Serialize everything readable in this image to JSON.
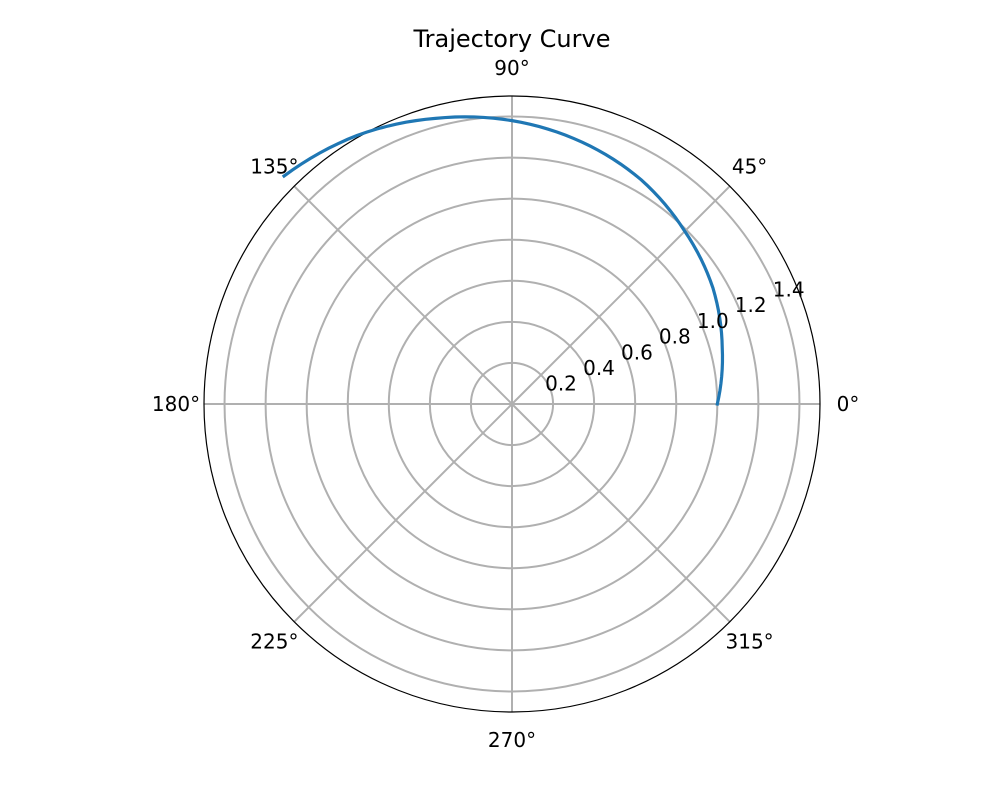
{
  "chart_data": {
    "type": "line",
    "projection": "polar",
    "title": "Trajectory Curve",
    "theta_unit": "degrees",
    "theta_ticks": [
      0,
      45,
      90,
      135,
      180,
      225,
      270,
      315
    ],
    "theta_tick_labels": [
      "0°",
      "45°",
      "90°",
      "135°",
      "180°",
      "225°",
      "270°",
      "315°"
    ],
    "r_ticks": [
      0.2,
      0.4,
      0.6,
      0.8,
      1.0,
      1.2,
      1.4
    ],
    "r_tick_labels": [
      "0.2",
      "0.4",
      "0.6",
      "0.8",
      "1.0",
      "1.2",
      "1.4"
    ],
    "r_lim": [
      0,
      1.5
    ],
    "r_label_angle_deg": 22.5,
    "grid": true,
    "colors": {
      "series": "#1f77b4",
      "grid": "#b0b0b0",
      "frame": "#000000"
    },
    "series": [
      {
        "theta": [
          0,
          15,
          30,
          45,
          60,
          75,
          90,
          105,
          120,
          135
        ],
        "r": [
          1.0,
          1.06,
          1.13,
          1.19,
          1.26,
          1.32,
          1.38,
          1.44,
          1.51,
          1.57
        ]
      }
    ]
  }
}
